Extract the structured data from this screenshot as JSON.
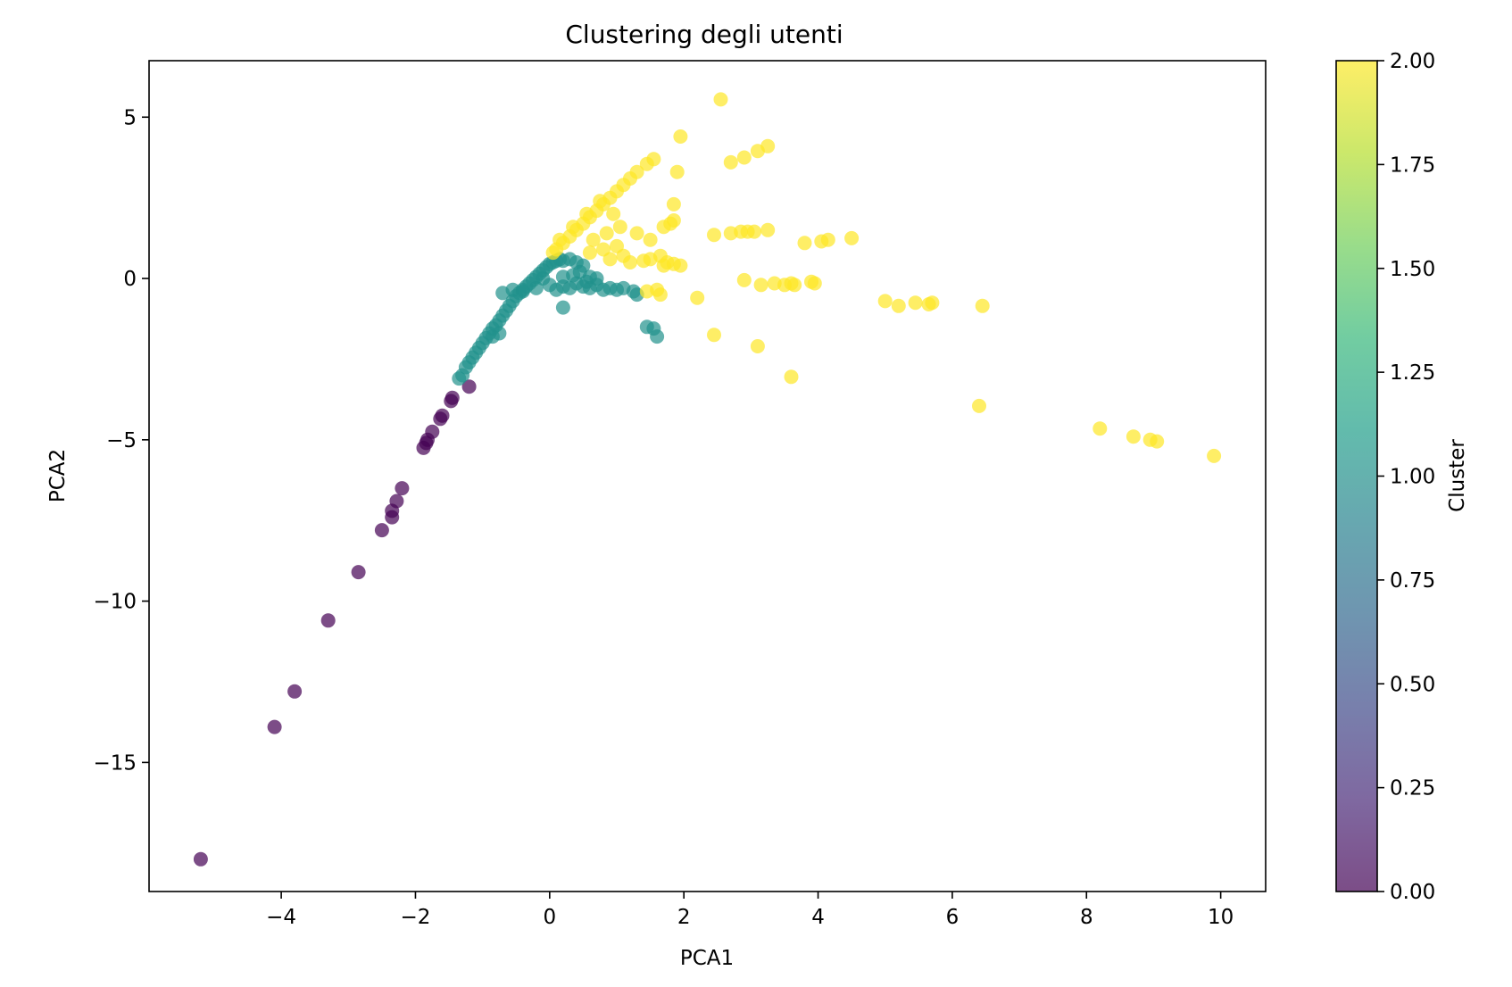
{
  "chart_data": {
    "type": "scatter",
    "title": "Clustering degli utenti",
    "xlabel": "PCA1",
    "ylabel": "PCA2",
    "xlim": [
      -5.97,
      10.67
    ],
    "ylim": [
      -19.0,
      6.75
    ],
    "xticks": [
      -4,
      -2,
      0,
      2,
      4,
      6,
      8,
      10
    ],
    "xtick_labels": [
      "−4",
      "−2",
      "0",
      "2",
      "4",
      "6",
      "8",
      "10"
    ],
    "yticks": [
      5,
      0,
      -5,
      -10,
      -15
    ],
    "ytick_labels": [
      "5",
      "0",
      "−5",
      "−10",
      "−15"
    ],
    "grid": false,
    "colormap": "viridis",
    "point_alpha": 0.7,
    "colorbar": {
      "label": "Cluster",
      "range": [
        0,
        2
      ],
      "ticks": [
        0,
        0.25,
        0.5,
        0.75,
        1.0,
        1.25,
        1.5,
        1.75,
        2.0
      ],
      "tick_labels": [
        "0.00",
        "0.25",
        "0.50",
        "0.75",
        "1.00",
        "1.25",
        "1.50",
        "1.75",
        "2.00"
      ],
      "colors": [
        "#440154",
        "#482878",
        "#3e4989",
        "#31688e",
        "#26828e",
        "#1f9e89",
        "#35b779",
        "#6ece58",
        "#b5de2b",
        "#fde725"
      ]
    },
    "clusters": [
      {
        "cluster": 0,
        "color": "#440154",
        "points": [
          [
            -5.2,
            -18.0
          ],
          [
            -4.1,
            -13.9
          ],
          [
            -3.8,
            -12.8
          ],
          [
            -3.3,
            -10.6
          ],
          [
            -2.85,
            -9.1
          ],
          [
            -2.5,
            -7.8
          ],
          [
            -2.35,
            -7.4
          ],
          [
            -2.35,
            -7.2
          ],
          [
            -2.28,
            -6.9
          ],
          [
            -2.2,
            -6.5
          ],
          [
            -1.88,
            -5.25
          ],
          [
            -1.84,
            -5.1
          ],
          [
            -1.82,
            -5.0
          ],
          [
            -1.75,
            -4.75
          ],
          [
            -1.63,
            -4.35
          ],
          [
            -1.6,
            -4.25
          ],
          [
            -1.47,
            -3.8
          ],
          [
            -1.45,
            -3.7
          ],
          [
            -1.2,
            -3.35
          ]
        ]
      },
      {
        "cluster": 1,
        "color": "#21918c",
        "points": [
          [
            -1.35,
            -3.1
          ],
          [
            -1.3,
            -3.0
          ],
          [
            -1.25,
            -2.75
          ],
          [
            -1.2,
            -2.6
          ],
          [
            -1.15,
            -2.45
          ],
          [
            -1.1,
            -2.3
          ],
          [
            -1.05,
            -2.15
          ],
          [
            -1.0,
            -2.0
          ],
          [
            -0.95,
            -1.85
          ],
          [
            -0.9,
            -1.7
          ],
          [
            -0.85,
            -1.55
          ],
          [
            -0.8,
            -1.45
          ],
          [
            -0.75,
            -1.3
          ],
          [
            -0.7,
            -1.15
          ],
          [
            -0.65,
            -1.0
          ],
          [
            -0.6,
            -0.85
          ],
          [
            -0.55,
            -0.7
          ],
          [
            -0.5,
            -0.55
          ],
          [
            -0.45,
            -0.45
          ],
          [
            -0.4,
            -0.35
          ],
          [
            -0.35,
            -0.25
          ],
          [
            -0.3,
            -0.15
          ],
          [
            -0.25,
            -0.05
          ],
          [
            -0.2,
            0.05
          ],
          [
            -0.15,
            0.15
          ],
          [
            -0.1,
            0.25
          ],
          [
            -0.05,
            0.35
          ],
          [
            0.0,
            0.45
          ],
          [
            0.05,
            0.5
          ],
          [
            0.1,
            0.55
          ],
          [
            0.15,
            0.6
          ],
          [
            0.2,
            0.55
          ],
          [
            0.3,
            0.6
          ],
          [
            0.4,
            0.5
          ],
          [
            0.5,
            0.4
          ],
          [
            -0.7,
            -0.45
          ],
          [
            -0.55,
            -0.35
          ],
          [
            -0.4,
            -0.4
          ],
          [
            -0.2,
            -0.3
          ],
          [
            0.0,
            -0.2
          ],
          [
            0.1,
            -0.35
          ],
          [
            0.2,
            -0.25
          ],
          [
            0.3,
            -0.3
          ],
          [
            0.4,
            -0.15
          ],
          [
            0.5,
            -0.25
          ],
          [
            0.55,
            -0.1
          ],
          [
            0.6,
            -0.3
          ],
          [
            0.7,
            -0.2
          ],
          [
            0.8,
            -0.35
          ],
          [
            0.9,
            -0.3
          ],
          [
            1.0,
            -0.35
          ],
          [
            1.1,
            -0.3
          ],
          [
            1.25,
            -0.4
          ],
          [
            1.3,
            -0.5
          ],
          [
            -0.1,
            0.0
          ],
          [
            0.2,
            0.05
          ],
          [
            0.35,
            0.1
          ],
          [
            0.45,
            0.2
          ],
          [
            0.6,
            0.05
          ],
          [
            0.7,
            0.0
          ],
          [
            -0.85,
            -1.8
          ],
          [
            -0.75,
            -1.7
          ],
          [
            0.2,
            -0.9
          ],
          [
            1.45,
            -1.5
          ],
          [
            1.55,
            -1.55
          ],
          [
            1.6,
            -1.8
          ]
        ]
      },
      {
        "cluster": 2,
        "color": "#fde725",
        "points": [
          [
            2.55,
            5.55
          ],
          [
            1.95,
            4.4
          ],
          [
            3.25,
            4.1
          ],
          [
            3.1,
            3.95
          ],
          [
            2.9,
            3.75
          ],
          [
            2.7,
            3.6
          ],
          [
            1.55,
            3.7
          ],
          [
            1.45,
            3.55
          ],
          [
            1.3,
            3.3
          ],
          [
            1.2,
            3.1
          ],
          [
            1.1,
            2.9
          ],
          [
            1.0,
            2.7
          ],
          [
            0.9,
            2.5
          ],
          [
            0.8,
            2.3
          ],
          [
            0.7,
            2.1
          ],
          [
            0.6,
            1.9
          ],
          [
            0.5,
            1.7
          ],
          [
            0.4,
            1.5
          ],
          [
            0.3,
            1.3
          ],
          [
            0.2,
            1.1
          ],
          [
            0.1,
            0.9
          ],
          [
            0.05,
            0.8
          ],
          [
            0.15,
            1.2
          ],
          [
            0.35,
            1.6
          ],
          [
            0.55,
            2.0
          ],
          [
            0.75,
            2.4
          ],
          [
            0.95,
            2.0
          ],
          [
            1.05,
            1.6
          ],
          [
            0.85,
            1.4
          ],
          [
            0.65,
            1.2
          ],
          [
            1.9,
            3.3
          ],
          [
            1.85,
            2.3
          ],
          [
            1.85,
            1.8
          ],
          [
            1.8,
            1.7
          ],
          [
            1.7,
            1.6
          ],
          [
            1.3,
            1.4
          ],
          [
            1.5,
            1.2
          ],
          [
            1.0,
            1.0
          ],
          [
            0.8,
            0.9
          ],
          [
            0.6,
            0.8
          ],
          [
            0.9,
            0.6
          ],
          [
            1.1,
            0.7
          ],
          [
            1.2,
            0.5
          ],
          [
            1.4,
            0.55
          ],
          [
            1.5,
            0.6
          ],
          [
            1.65,
            0.7
          ],
          [
            1.75,
            0.5
          ],
          [
            1.85,
            0.45
          ],
          [
            1.7,
            0.4
          ],
          [
            1.95,
            0.4
          ],
          [
            2.45,
            1.35
          ],
          [
            2.7,
            1.4
          ],
          [
            2.85,
            1.45
          ],
          [
            2.95,
            1.45
          ],
          [
            3.05,
            1.45
          ],
          [
            3.25,
            1.5
          ],
          [
            3.8,
            1.1
          ],
          [
            4.05,
            1.15
          ],
          [
            4.15,
            1.2
          ],
          [
            4.5,
            1.25
          ],
          [
            1.45,
            -0.4
          ],
          [
            1.6,
            -0.35
          ],
          [
            1.65,
            -0.5
          ],
          [
            2.2,
            -0.6
          ],
          [
            2.9,
            -0.05
          ],
          [
            3.15,
            -0.2
          ],
          [
            3.35,
            -0.15
          ],
          [
            3.5,
            -0.2
          ],
          [
            3.6,
            -0.15
          ],
          [
            3.65,
            -0.2
          ],
          [
            3.9,
            -0.1
          ],
          [
            3.95,
            -0.15
          ],
          [
            5.0,
            -0.7
          ],
          [
            5.2,
            -0.85
          ],
          [
            5.45,
            -0.75
          ],
          [
            5.65,
            -0.8
          ],
          [
            5.7,
            -0.75
          ],
          [
            6.45,
            -0.85
          ],
          [
            2.45,
            -1.75
          ],
          [
            3.1,
            -2.1
          ],
          [
            3.6,
            -3.05
          ],
          [
            6.4,
            -3.95
          ],
          [
            8.2,
            -4.65
          ],
          [
            8.7,
            -4.9
          ],
          [
            8.95,
            -5.0
          ],
          [
            9.05,
            -5.05
          ],
          [
            9.9,
            -5.5
          ]
        ]
      }
    ]
  }
}
